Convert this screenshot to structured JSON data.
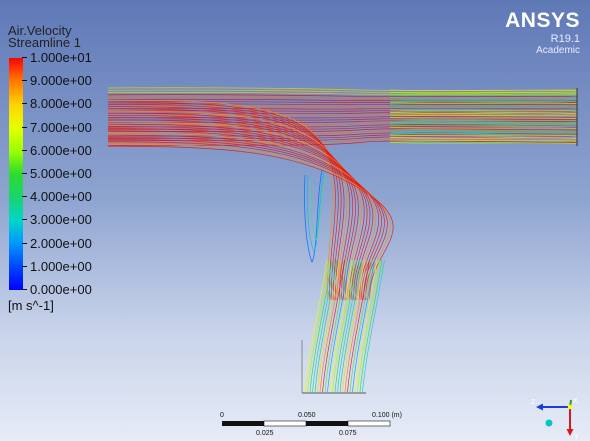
{
  "legend": {
    "variable": "Air.Velocity",
    "object": "Streamline 1",
    "ticks": [
      "1.000e+01",
      "9.000e+00",
      "8.000e+00",
      "7.000e+00",
      "6.000e+00",
      "5.000e+00",
      "4.000e+00",
      "3.000e+00",
      "2.000e+00",
      "1.000e+00",
      "0.000e+00"
    ],
    "unit": "[m s^-1]",
    "colors": [
      "#ff0000",
      "#ff7a00",
      "#ffd200",
      "#e6ff00",
      "#9cff00",
      "#2ddc2d",
      "#19d46e",
      "#00d6c9",
      "#0096ff",
      "#0046ff",
      "#0000ff"
    ]
  },
  "brand": {
    "name": "ANSYS",
    "version": "R19.1",
    "edition": "Academic"
  },
  "scale_bar": {
    "top_labels": [
      "0",
      "0.050",
      "0.100  (m)"
    ],
    "bottom_labels": [
      "0.025",
      "0.075"
    ]
  },
  "triad": {
    "axes": [
      "Z",
      "X",
      "Y"
    ]
  }
}
